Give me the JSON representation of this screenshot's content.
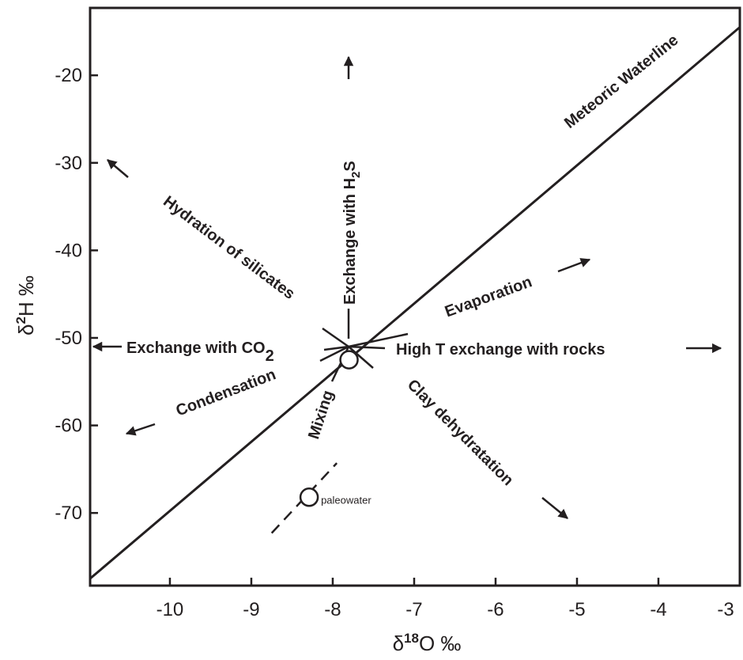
{
  "chart_data": {
    "type": "diagram",
    "xlabel": {
      "base": "δ",
      "sup": "18",
      "rest": "O ‰"
    },
    "ylabel": {
      "base": "δ",
      "sup": "2",
      "rest": "H ‰"
    },
    "xlim": [
      -10.98,
      -3
    ],
    "ylim": [
      -78.3,
      -12.3
    ],
    "xticks": [
      "-10",
      "-9",
      "-8",
      "-7",
      "-6",
      "-5",
      "-4",
      "-3"
    ],
    "yticks": [
      "-20",
      "-30",
      "-40",
      "-50",
      "-60",
      "-70"
    ],
    "grid": false,
    "meteoric_line": {
      "label": "Meteoric Waterline",
      "points": [
        [
          -10.98,
          -77.5
        ],
        [
          -3,
          -14.5
        ]
      ]
    },
    "centre_point": {
      "x": -7.8,
      "y": -52.5
    },
    "paleowater": {
      "label": "paleowater",
      "x": -8.29,
      "y": -68.2
    },
    "mixing_dashed": [
      [
        -8.75,
        -72.3
      ],
      [
        -7.95,
        -64.3
      ]
    ],
    "annotations": {
      "h2s": {
        "text": "Exchange with H",
        "sub": "2",
        "tail": "S"
      },
      "hydration": "Hydration of silicates",
      "evaporation": "Evaporation",
      "co2": {
        "text": "Exchange with CO",
        "sub": "2"
      },
      "hight": "High T exchange with rocks",
      "condensation": "Condensation",
      "mixing": "Mixing",
      "clay": "Clay dehydratation"
    },
    "color": "#231f20"
  }
}
